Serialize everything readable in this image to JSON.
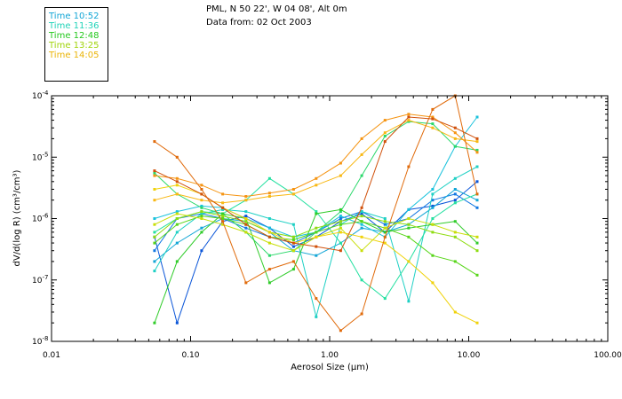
{
  "header": {
    "location": "PML, N 50 22', W 04 08', Alt 0m",
    "data_from": "Data from: 02 Oct 2003"
  },
  "legend": [
    {
      "label": "Time 10:52",
      "color": "#13a6d6"
    },
    {
      "label": "Time 11:36",
      "color": "#1fd3b8"
    },
    {
      "label": "Time 12:48",
      "color": "#24c81d"
    },
    {
      "label": "Time 13:25",
      "color": "#a0d40a"
    },
    {
      "label": "Time 14:05",
      "color": "#eab406"
    }
  ],
  "chart_data": {
    "type": "line",
    "title": "",
    "xlabel": "Aerosol Size (µm)",
    "ylabel": "dV/d(log R) (cm³/cm³)",
    "x_scale": "log",
    "y_scale": "log",
    "xlim": [
      0.01,
      100
    ],
    "ylim": [
      1e-08,
      0.0001
    ],
    "x_ticks": [
      {
        "value": 0.01,
        "label": "0.01"
      },
      {
        "value": 0.1,
        "label": "0.10"
      },
      {
        "value": 1,
        "label": "1.00"
      },
      {
        "value": 10,
        "label": "10.00"
      },
      {
        "value": 100,
        "label": "100.00"
      }
    ],
    "y_ticks": [
      {
        "value": 1e-08,
        "base": "10",
        "exp": "-8"
      },
      {
        "value": 1e-07,
        "base": "10",
        "exp": "-7"
      },
      {
        "value": 1e-06,
        "base": "10",
        "exp": "-6"
      },
      {
        "value": 1e-05,
        "base": "10",
        "exp": "-5"
      },
      {
        "value": 0.0001,
        "base": "10",
        "exp": "-4"
      }
    ],
    "grid": false,
    "x": [
      0.055,
      0.08,
      0.12,
      0.17,
      0.25,
      0.37,
      0.55,
      0.8,
      1.2,
      1.7,
      2.5,
      3.7,
      5.5,
      8.0,
      11.5
    ],
    "series": [
      {
        "name": "s1",
        "color": "#0a55d8",
        "values": [
          5e-07,
          2e-08,
          3e-07,
          9e-07,
          1.1e-06,
          7e-07,
          3.5e-07,
          5e-07,
          9e-07,
          1.2e-06,
          6e-07,
          1.4e-06,
          1.6e-06,
          2e-06,
          4e-06
        ]
      },
      {
        "name": "s2",
        "color": "#1177e2",
        "values": [
          3e-07,
          1e-06,
          1.2e-06,
          1e-06,
          7e-07,
          5e-07,
          4e-07,
          6e-07,
          1e-06,
          1.3e-06,
          8e-07,
          1e-06,
          2e-06,
          2.5e-06,
          1.5e-06
        ]
      },
      {
        "name": "s3",
        "color": "#13a6d6",
        "values": [
          2e-07,
          4e-07,
          7e-07,
          1e-06,
          9e-07,
          6e-07,
          3e-07,
          2.5e-07,
          4e-07,
          7e-07,
          6e-07,
          8e-07,
          1.5e-06,
          3e-06,
          2e-06
        ]
      },
      {
        "name": "s4",
        "color": "#19c2dc",
        "values": [
          1e-06,
          1.3e-06,
          1.6e-06,
          1.5e-06,
          1e-06,
          7e-07,
          5e-07,
          6e-07,
          1.1e-06,
          8e-07,
          5e-07,
          1.4e-06,
          3e-06,
          1.5e-05,
          4.5e-05
        ]
      },
      {
        "name": "s5",
        "color": "#1ed0c4",
        "values": [
          1.4e-07,
          6e-07,
          1.2e-06,
          1.4e-06,
          1.3e-06,
          1e-06,
          8e-07,
          2.5e-08,
          8e-07,
          1.3e-06,
          1e-06,
          4.5e-08,
          2.5e-06,
          4.5e-06,
          7e-06
        ]
      },
      {
        "name": "s6",
        "color": "#24e0a0",
        "values": [
          6e-07,
          1e-06,
          1.3e-06,
          1.2e-06,
          2e-06,
          4.5e-06,
          2.5e-06,
          1.3e-06,
          4e-07,
          1e-07,
          5e-08,
          2e-07,
          1e-06,
          1.8e-06,
          2.5e-06
        ]
      },
      {
        "name": "s7",
        "color": "#2ad86a",
        "values": [
          5.5e-06,
          2.5e-06,
          1.5e-06,
          1.2e-06,
          6e-07,
          2.5e-07,
          3e-07,
          6e-07,
          1.3e-06,
          5e-06,
          2.2e-05,
          3.8e-05,
          3.5e-05,
          1.5e-05,
          1.3e-05
        ]
      },
      {
        "name": "s8",
        "color": "#30cc2a",
        "values": [
          2e-08,
          2e-07,
          6e-07,
          1.2e-06,
          1e-06,
          9e-08,
          1.5e-07,
          1.2e-06,
          1.4e-06,
          9e-07,
          6e-07,
          7e-07,
          8e-07,
          9e-07,
          4e-07
        ]
      },
      {
        "name": "s9",
        "color": "#58d61a",
        "values": [
          4e-07,
          8e-07,
          1.1e-06,
          1e-06,
          8e-07,
          5e-07,
          4.5e-07,
          6e-07,
          8e-07,
          9e-07,
          7e-07,
          5e-07,
          2.5e-07,
          2e-07,
          1.2e-07
        ]
      },
      {
        "name": "s10",
        "color": "#8edc10",
        "values": [
          5e-07,
          1e-06,
          1.3e-06,
          1.1e-06,
          9e-07,
          6e-07,
          5e-07,
          7e-07,
          9e-07,
          1.1e-06,
          9e-07,
          8e-07,
          6e-07,
          5e-07,
          3e-07
        ]
      },
      {
        "name": "s11",
        "color": "#c8de08",
        "values": [
          8e-07,
          1.2e-06,
          1e-06,
          8e-07,
          6e-07,
          4e-07,
          3e-07,
          5e-07,
          7e-07,
          3e-07,
          7e-07,
          1e-06,
          8e-07,
          6e-07,
          5e-07
        ]
      },
      {
        "name": "s12",
        "color": "#f0d20a",
        "values": [
          3e-06,
          3.5e-06,
          2.5e-06,
          1.5e-06,
          1e-06,
          6e-07,
          4e-07,
          5e-07,
          6e-07,
          5e-07,
          4e-07,
          2e-07,
          9e-08,
          3e-08,
          2e-08
        ]
      },
      {
        "name": "s13",
        "color": "#f8b814",
        "values": [
          2e-06,
          2.5e-06,
          2e-06,
          1.8e-06,
          2e-06,
          2.3e-06,
          2.5e-06,
          3.5e-06,
          5e-06,
          1.1e-05,
          2.5e-05,
          4e-05,
          3e-05,
          2e-05,
          1.8e-05
        ]
      },
      {
        "name": "s14",
        "color": "#f59412",
        "values": [
          5e-06,
          4.5e-06,
          3.5e-06,
          2.5e-06,
          2.3e-06,
          2.6e-06,
          3e-06,
          4.5e-06,
          8e-06,
          2e-05,
          4e-05,
          5e-05,
          4.5e-05,
          2.5e-05,
          1.2e-05
        ]
      },
      {
        "name": "s15",
        "color": "#e06a0a",
        "values": [
          1.8e-05,
          1e-05,
          3e-06,
          9e-07,
          9e-08,
          1.5e-07,
          2e-07,
          5e-08,
          1.5e-08,
          2.8e-08,
          5e-07,
          7e-06,
          6e-05,
          0.0001,
          2.5e-06
        ]
      },
      {
        "name": "s16",
        "color": "#d0500a",
        "values": [
          6e-06,
          4e-06,
          2.5e-06,
          1.5e-06,
          8e-07,
          5e-07,
          4e-07,
          3.5e-07,
          3e-07,
          1.5e-06,
          1.8e-05,
          4.5e-05,
          4.2e-05,
          3e-05,
          2e-05
        ]
      }
    ]
  }
}
